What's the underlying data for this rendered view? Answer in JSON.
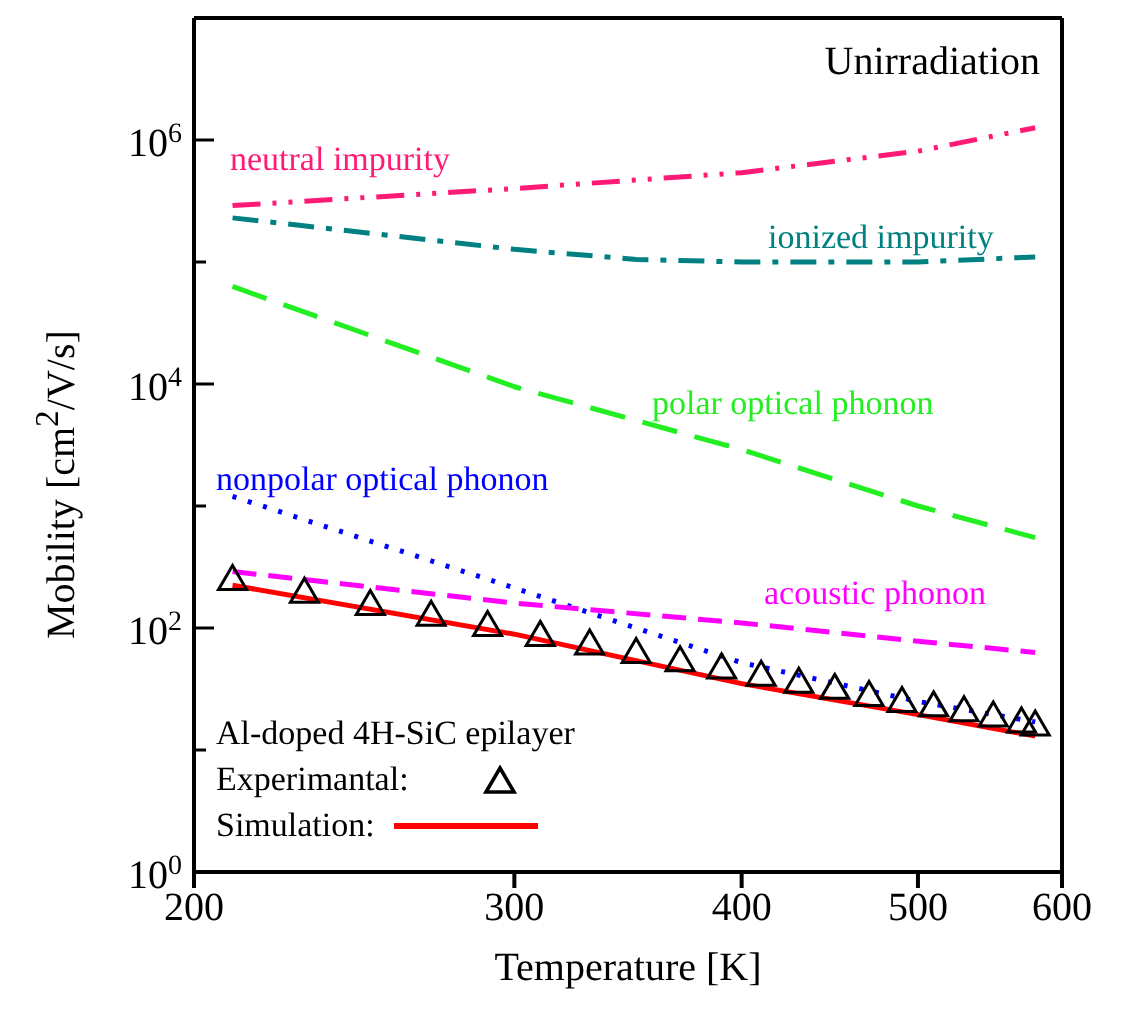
{
  "chart_data": {
    "type": "line",
    "title": "Unirradiation",
    "xlabel": "Temperature [K]",
    "ylabel": "Mobility [cm$^{2}$/V/s]",
    "legend_title": "Al-doped 4H-SiC epilayer",
    "legend": "bottom left",
    "log": "xy",
    "marker": "none",
    "xlim": [
      200,
      600
    ],
    "xticks": [
      200,
      300,
      400,
      500,
      600
    ],
    "ylim": [
      1,
      10000000
    ],
    "yticks": [
      {
        "value": 1,
        "label": "10$^{0}$"
      },
      {
        "value": 10,
        "label": null
      },
      {
        "value": 100,
        "label": "10$^{2}$"
      },
      {
        "value": 1000,
        "label": null
      },
      {
        "value": 10000,
        "label": "10$^{4}$"
      },
      {
        "value": 100000,
        "label": null
      },
      {
        "value": 1000000,
        "label": "10$^{6}$"
      },
      {
        "value": 10000000,
        "label": null
      }
    ],
    "series": [
      {
        "name": "neutral impurity",
        "color": "#ff1a75",
        "line_style": "dashed",
        "x": [
          210,
          300,
          400,
          500,
          580
        ],
        "values": [
          290000,
          400000,
          540000,
          810000,
          1260000
        ]
      },
      {
        "name": "ionized impurity",
        "color": "#008080",
        "line_style": "dashed",
        "x": [
          210,
          300,
          350,
          400,
          500,
          580
        ],
        "values": [
          230000,
          127000,
          105000,
          100000,
          100000,
          110000
        ]
      },
      {
        "name": "polar optical phonon",
        "color": "#22ee22",
        "line_style": "dashed",
        "x": [
          210,
          300,
          400,
          500,
          580
        ],
        "values": [
          63000,
          9500,
          2900,
          1000,
          550
        ]
      },
      {
        "name": "nonpolar optical phonon",
        "color": "#0000ff",
        "line_style": "dotted",
        "x": [
          210,
          300,
          400,
          500,
          580
        ],
        "values": [
          1200,
          213,
          52,
          25,
          17
        ]
      },
      {
        "name": "acoustic phonon",
        "color": "#ff00ff",
        "line_style": "dashed",
        "x": [
          210,
          300,
          400,
          500,
          580
        ],
        "values": [
          290,
          160,
          110,
          78,
          63
        ]
      },
      {
        "name": "Experimantal:",
        "type": "scatter",
        "marker": "triangle",
        "color": "#000000",
        "x": [
          210,
          230,
          250,
          270,
          290,
          310,
          330,
          350,
          370,
          390,
          410,
          430,
          450,
          470,
          490,
          510,
          530,
          550,
          570,
          580
        ],
        "values": [
          250,
          196,
          156,
          127,
          105,
          87,
          74,
          63,
          54,
          47,
          41,
          36,
          32,
          28,
          25,
          23,
          21,
          19,
          17,
          16
        ]
      },
      {
        "name": "Simulation:",
        "color": "#ff0000",
        "line_style": "solid",
        "x": [
          210,
          300,
          400,
          500,
          580
        ],
        "values": [
          224,
          89,
          35,
          19.5,
          13
        ]
      }
    ]
  }
}
